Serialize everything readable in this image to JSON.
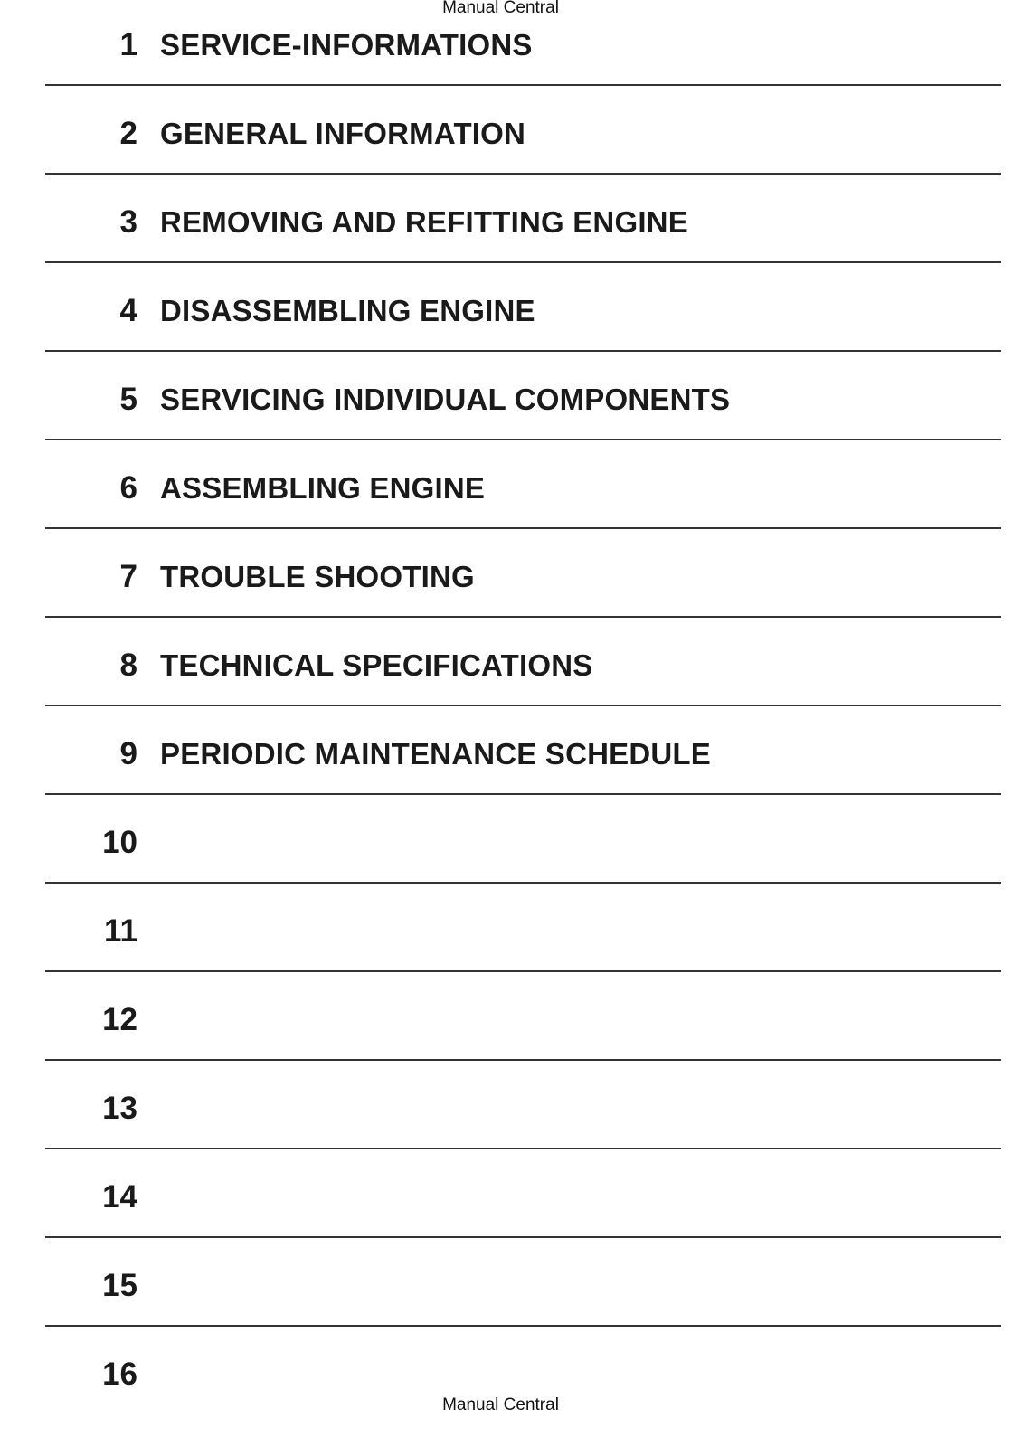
{
  "header": {
    "text": "Manual Central"
  },
  "footer": {
    "text": "Manual Central"
  },
  "chapters": [
    {
      "number": "1",
      "title": "SERVICE-INFORMATIONS"
    },
    {
      "number": "2",
      "title": "GENERAL INFORMATION"
    },
    {
      "number": "3",
      "title": "REMOVING AND REFITTING ENGINE"
    },
    {
      "number": "4",
      "title": "DISASSEMBLING ENGINE"
    },
    {
      "number": "5",
      "title": "SERVICING INDIVIDUAL COMPONENTS"
    },
    {
      "number": "6",
      "title": "ASSEMBLING ENGINE"
    },
    {
      "number": "7",
      "title": "TROUBLE SHOOTING"
    },
    {
      "number": "8",
      "title": "TECHNICAL SPECIFICATIONS"
    },
    {
      "number": "9",
      "title": "PERIODIC MAINTENANCE SCHEDULE"
    },
    {
      "number": "10",
      "title": ""
    },
    {
      "number": "11",
      "title": ""
    },
    {
      "number": "12",
      "title": ""
    },
    {
      "number": "13",
      "title": ""
    },
    {
      "number": "14",
      "title": ""
    },
    {
      "number": "15",
      "title": ""
    },
    {
      "number": "16",
      "title": ""
    }
  ]
}
